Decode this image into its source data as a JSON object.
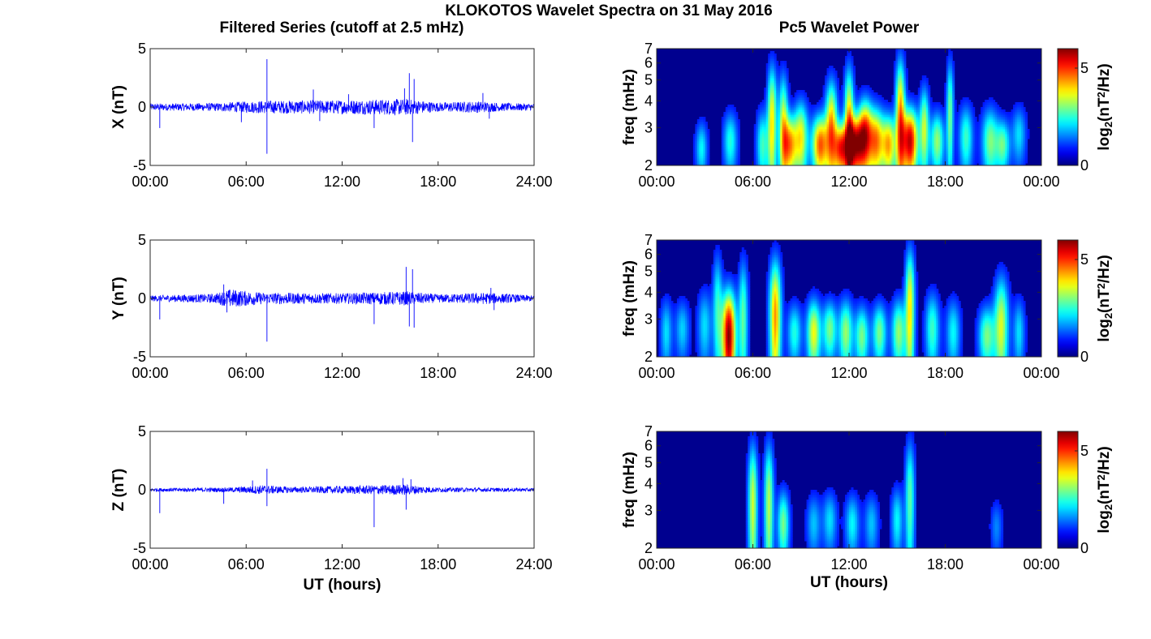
{
  "figure": {
    "title": "KLOKOTOS Wavelet Spectra on 31 May 2016",
    "left_column_title": "Filtered Series (cutoff at 2.5 mHz)",
    "right_column_title": "Pc5 Wavelet Power",
    "line_color": "#0000ff",
    "colormap": "jet"
  },
  "chart_data": [
    {
      "type": "line",
      "id": "x-series",
      "ylabel": "X (nT)",
      "xlabel": "",
      "xlim": [
        0,
        24
      ],
      "ylim": [
        -5,
        5
      ],
      "xticks": [
        "00:00",
        "06:00",
        "12:00",
        "18:00",
        "24:00"
      ],
      "yticks": [
        "-5",
        "0",
        "5"
      ],
      "background_amplitude": [
        [
          0,
          0.3
        ],
        [
          4,
          0.35
        ],
        [
          7,
          0.55
        ],
        [
          12,
          0.6
        ],
        [
          16,
          0.7
        ],
        [
          18,
          0.4
        ],
        [
          20.5,
          0.5
        ],
        [
          22,
          0.35
        ],
        [
          24,
          0.3
        ]
      ],
      "spikes": [
        [
          0.6,
          -1.8
        ],
        [
          5.7,
          -1.3
        ],
        [
          7.3,
          4.1
        ],
        [
          7.3,
          -4.0
        ],
        [
          10.2,
          1.5
        ],
        [
          10.6,
          -1.2
        ],
        [
          12.4,
          1.1
        ],
        [
          14.0,
          -1.8
        ],
        [
          15.9,
          1.6
        ],
        [
          16.2,
          2.9
        ],
        [
          16.4,
          -3.0
        ],
        [
          16.5,
          2.4
        ],
        [
          20.8,
          1.2
        ],
        [
          21.2,
          -1.0
        ]
      ]
    },
    {
      "type": "line",
      "id": "y-series",
      "ylabel": "Y (nT)",
      "xlabel": "",
      "xlim": [
        0,
        24
      ],
      "ylim": [
        -5,
        5
      ],
      "xticks": [
        "00:00",
        "06:00",
        "12:00",
        "18:00",
        "24:00"
      ],
      "yticks": [
        "-5",
        "0",
        "5"
      ],
      "background_amplitude": [
        [
          0,
          0.25
        ],
        [
          4,
          0.4
        ],
        [
          5,
          0.8
        ],
        [
          7,
          0.5
        ],
        [
          12,
          0.45
        ],
        [
          16,
          0.6
        ],
        [
          18,
          0.35
        ],
        [
          21,
          0.5
        ],
        [
          24,
          0.25
        ]
      ],
      "spikes": [
        [
          0.6,
          -1.8
        ],
        [
          4.6,
          1.2
        ],
        [
          4.8,
          -1.2
        ],
        [
          7.3,
          -3.7
        ],
        [
          14.0,
          -2.2
        ],
        [
          16.0,
          2.7
        ],
        [
          16.2,
          -2.4
        ],
        [
          16.4,
          2.5
        ],
        [
          16.5,
          -2.5
        ],
        [
          21.3,
          0.9
        ],
        [
          21.5,
          -1.0
        ]
      ]
    },
    {
      "type": "line",
      "id": "z-series",
      "ylabel": "Z (nT)",
      "xlabel": "UT (hours)",
      "xlim": [
        0,
        24
      ],
      "ylim": [
        -5,
        5
      ],
      "xticks": [
        "00:00",
        "06:00",
        "12:00",
        "18:00",
        "24:00"
      ],
      "yticks": [
        "-5",
        "0",
        "5"
      ],
      "background_amplitude": [
        [
          0,
          0.15
        ],
        [
          5,
          0.2
        ],
        [
          7,
          0.4
        ],
        [
          9,
          0.25
        ],
        [
          16,
          0.45
        ],
        [
          18,
          0.2
        ],
        [
          24,
          0.15
        ]
      ],
      "spikes": [
        [
          0.6,
          -2.0
        ],
        [
          4.6,
          -1.2
        ],
        [
          6.4,
          0.8
        ],
        [
          7.3,
          1.8
        ],
        [
          7.3,
          -1.4
        ],
        [
          14.0,
          -3.2
        ],
        [
          15.8,
          1.0
        ],
        [
          16.0,
          -1.7
        ],
        [
          16.3,
          0.9
        ]
      ]
    },
    {
      "type": "heatmap",
      "id": "x-power",
      "ylabel": "freq (mHz)",
      "xlabel": "",
      "xlim": [
        0,
        24
      ],
      "ylim": [
        2,
        7
      ],
      "yscale": "log",
      "xticks": [
        "00:00",
        "06:00",
        "12:00",
        "18:00",
        "00:00"
      ],
      "yticks": [
        "2",
        "3",
        "4",
        "5",
        "6",
        "7"
      ],
      "colorbar_label": "log2(nT²/Hz)",
      "colorbar_ticks": [
        "0",
        "5"
      ],
      "clim": [
        0,
        6
      ],
      "blobs": [
        [
          2.8,
          2.4,
          0.25,
          0.5,
          1.8
        ],
        [
          4.6,
          2.6,
          0.3,
          0.6,
          2.0
        ],
        [
          6.6,
          2.5,
          0.25,
          0.7,
          2.2
        ],
        [
          7.2,
          3.2,
          0.2,
          1.6,
          3.6
        ],
        [
          7.9,
          3.0,
          0.2,
          1.4,
          3.2
        ],
        [
          8.3,
          2.5,
          0.3,
          0.6,
          4.0
        ],
        [
          9.0,
          2.7,
          0.3,
          0.8,
          3.4
        ],
        [
          10.2,
          2.5,
          0.35,
          0.6,
          4.6
        ],
        [
          10.9,
          3.0,
          0.25,
          1.2,
          4.0
        ],
        [
          11.5,
          2.4,
          0.3,
          0.5,
          4.8
        ],
        [
          12.0,
          3.1,
          0.2,
          1.6,
          3.8
        ],
        [
          12.4,
          2.5,
          0.35,
          0.6,
          5.2
        ],
        [
          13.0,
          2.8,
          0.3,
          0.8,
          4.5
        ],
        [
          13.7,
          2.6,
          0.35,
          0.7,
          4.2
        ],
        [
          14.5,
          2.5,
          0.3,
          0.6,
          3.8
        ],
        [
          15.2,
          3.3,
          0.2,
          1.8,
          4.2
        ],
        [
          15.8,
          2.6,
          0.35,
          0.7,
          5.6
        ],
        [
          16.7,
          3.0,
          0.2,
          1.0,
          3.0
        ],
        [
          17.5,
          2.6,
          0.3,
          0.6,
          2.8
        ],
        [
          18.3,
          3.5,
          0.15,
          1.6,
          2.6
        ],
        [
          19.3,
          2.7,
          0.3,
          0.7,
          2.2
        ],
        [
          20.8,
          2.6,
          0.35,
          0.7,
          2.6
        ],
        [
          21.6,
          2.5,
          0.3,
          0.5,
          2.4
        ],
        [
          22.6,
          2.8,
          0.3,
          0.6,
          1.6
        ]
      ]
    },
    {
      "type": "heatmap",
      "id": "y-power",
      "ylabel": "freq (mHz)",
      "xlabel": "",
      "xlim": [
        0,
        24
      ],
      "ylim": [
        2,
        7
      ],
      "yscale": "log",
      "xticks": [
        "00:00",
        "06:00",
        "12:00",
        "18:00",
        "00:00"
      ],
      "yticks": [
        "2",
        "3",
        "4",
        "5",
        "6",
        "7"
      ],
      "colorbar_label": "log2(nT²/Hz)",
      "colorbar_ticks": [
        "0",
        "5"
      ],
      "clim": [
        0,
        6
      ],
      "blobs": [
        [
          0.6,
          2.6,
          0.25,
          0.7,
          1.6
        ],
        [
          1.6,
          2.7,
          0.3,
          0.6,
          1.5
        ],
        [
          3.0,
          2.8,
          0.3,
          0.8,
          1.6
        ],
        [
          3.8,
          3.4,
          0.2,
          1.6,
          2.0
        ],
        [
          4.5,
          2.5,
          0.3,
          1.0,
          6.0
        ],
        [
          5.4,
          3.0,
          0.2,
          1.6,
          2.4
        ],
        [
          7.4,
          3.1,
          0.25,
          1.6,
          4.2
        ],
        [
          8.6,
          2.6,
          0.3,
          0.6,
          2.0
        ],
        [
          9.8,
          2.6,
          0.3,
          0.7,
          3.4
        ],
        [
          10.8,
          2.7,
          0.3,
          0.6,
          2.6
        ],
        [
          11.8,
          2.6,
          0.3,
          0.7,
          2.8
        ],
        [
          12.8,
          2.5,
          0.3,
          0.6,
          2.6
        ],
        [
          13.9,
          2.6,
          0.3,
          0.6,
          2.6
        ],
        [
          15.1,
          2.6,
          0.3,
          0.7,
          2.8
        ],
        [
          15.8,
          3.4,
          0.2,
          1.8,
          3.6
        ],
        [
          17.2,
          2.7,
          0.3,
          0.8,
          2.2
        ],
        [
          18.5,
          2.6,
          0.3,
          0.7,
          1.8
        ],
        [
          20.6,
          2.5,
          0.35,
          0.6,
          2.6
        ],
        [
          21.5,
          2.8,
          0.3,
          1.2,
          3.2
        ],
        [
          22.6,
          2.6,
          0.25,
          0.7,
          1.6
        ]
      ]
    },
    {
      "type": "heatmap",
      "id": "z-power",
      "ylabel": "freq (mHz)",
      "xlabel": "UT (hours)",
      "xlim": [
        0,
        24
      ],
      "ylim": [
        2,
        7
      ],
      "yscale": "log",
      "xticks": [
        "00:00",
        "06:00",
        "12:00",
        "18:00",
        "00:00"
      ],
      "yticks": [
        "2",
        "3",
        "4",
        "5",
        "6",
        "7"
      ],
      "colorbar_label": "log2(nT²/Hz)",
      "colorbar_ticks": [
        "0",
        "5"
      ],
      "clim": [
        0,
        6
      ],
      "blobs": [
        [
          6.0,
          3.2,
          0.2,
          1.8,
          3.2
        ],
        [
          7.0,
          3.2,
          0.2,
          1.8,
          3.0
        ],
        [
          7.9,
          2.6,
          0.25,
          0.7,
          2.6
        ],
        [
          9.8,
          2.6,
          0.3,
          0.6,
          1.4
        ],
        [
          10.8,
          2.7,
          0.3,
          0.6,
          1.6
        ],
        [
          12.2,
          2.6,
          0.3,
          0.6,
          1.8
        ],
        [
          13.4,
          2.6,
          0.3,
          0.6,
          1.4
        ],
        [
          15.0,
          2.7,
          0.25,
          0.7,
          1.8
        ],
        [
          15.8,
          3.4,
          0.2,
          1.8,
          2.4
        ],
        [
          21.2,
          2.5,
          0.25,
          0.5,
          1.0
        ]
      ]
    }
  ]
}
